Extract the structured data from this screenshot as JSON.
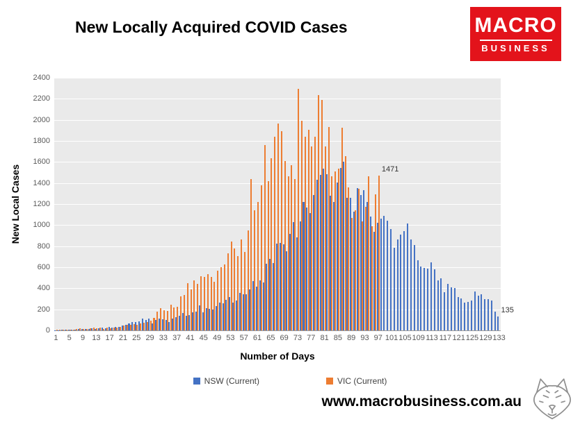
{
  "logo": {
    "brand_top": "MACRO",
    "brand_bottom": "BUSINESS",
    "bg_color": "#e3131b"
  },
  "footer": {
    "website": "www.macrobusiness.com.au"
  },
  "chart_data": {
    "type": "bar",
    "title": "New Locally Acquired COVID Cases",
    "xlabel": "Number of Days",
    "ylabel": "New Local Cases",
    "ylim": [
      0,
      2400
    ],
    "yticks": [
      0,
      200,
      400,
      600,
      800,
      1000,
      1200,
      1400,
      1600,
      1800,
      2000,
      2200,
      2400
    ],
    "xticks": [
      1,
      5,
      9,
      13,
      17,
      21,
      25,
      29,
      33,
      37,
      41,
      45,
      49,
      53,
      57,
      61,
      65,
      69,
      73,
      77,
      81,
      85,
      89,
      93,
      97,
      101,
      105,
      109,
      113,
      117,
      121,
      125,
      129,
      133
    ],
    "x": {
      "first_day": 1,
      "last_day": 133,
      "label_every": 4
    },
    "grid": true,
    "legend_position": "bottom",
    "colors": {
      "plot_bg": "#eaeaea",
      "grid": "#ffffff",
      "axis_line": "#9a9a9a",
      "tick_text": "#595959"
    },
    "series": [
      {
        "name": "NSW (Current)",
        "color": "#4472c4",
        "values": [
          2,
          3,
          5,
          4,
          6,
          8,
          9,
          11,
          13,
          10,
          16,
          18,
          14,
          21,
          25,
          22,
          30,
          27,
          35,
          32,
          44,
          52,
          65,
          82,
          77,
          89,
          112,
          97,
          110,
          65,
          97,
          111,
          105,
          98,
          78,
          110,
          124,
          136,
          163,
          141,
          145,
          172,
          177,
          239,
          170,
          210,
          207,
          199,
          233,
          262,
          259,
          291,
          319,
          262,
          283,
          356,
          344,
          345,
          390,
          466,
          415,
          478,
          452,
          633,
          681,
          642,
          825,
          830,
          818,
          753,
          919,
          1029,
          882,
          1035,
          1218,
          1164,
          1116,
          1288,
          1431,
          1480,
          1533,
          1485,
          1281,
          1220,
          1405,
          1542,
          1599,
          1262,
          1257,
          1127,
          1351,
          1284,
          1331,
          1218,
          1083,
          935,
          1022,
          1063,
          1088,
          1043,
          961,
          787,
          863,
          907,
          941,
          1016,
          864,
          813,
          667,
          608,
          594,
          587,
          646,
          580,
          477,
          496,
          360,
          444,
          406,
          399,
          319,
          301,
          265,
          273,
          283,
          372,
          332,
          345,
          296,
          294,
          286,
          177,
          135
        ]
      },
      {
        "name": "VIC (Current)",
        "color": "#ed7d31",
        "values": [
          4,
          6,
          8,
          6,
          9,
          8,
          11,
          20,
          16,
          12,
          21,
          25,
          20,
          25,
          16,
          24,
          22,
          25,
          28,
          33,
          45,
          55,
          50,
          61,
          55,
          64,
          73,
          80,
          92,
          120,
          176,
          208,
          190,
          183,
          246,
          220,
          221,
          324,
          334,
          450,
          392,
          473,
          445,
          514,
          510,
          535,
          507,
          459,
          567,
          603,
          628,
          733,
          847,
          779,
          705,
          867,
          745,
          950,
          1438,
          1143,
          1220,
          1377,
          1763,
          1420,
          1638,
          1838,
          1965,
          1890,
          1612,
          1466,
          1571,
          1438,
          2297,
          1993,
          1838,
          1903,
          1749,
          1841,
          2232,
          2189,
          1750,
          1935,
          1461,
          1510,
          1534,
          1923,
          1656,
          1355,
          1071,
          1143,
          1347,
          1036,
          1173,
          1461,
          989,
          1290,
          1471
        ]
      }
    ],
    "annotations": [
      {
        "text": "1471",
        "series_index": 1,
        "day": 97
      },
      {
        "text": "135",
        "series_index": 0,
        "day": 133
      }
    ]
  }
}
